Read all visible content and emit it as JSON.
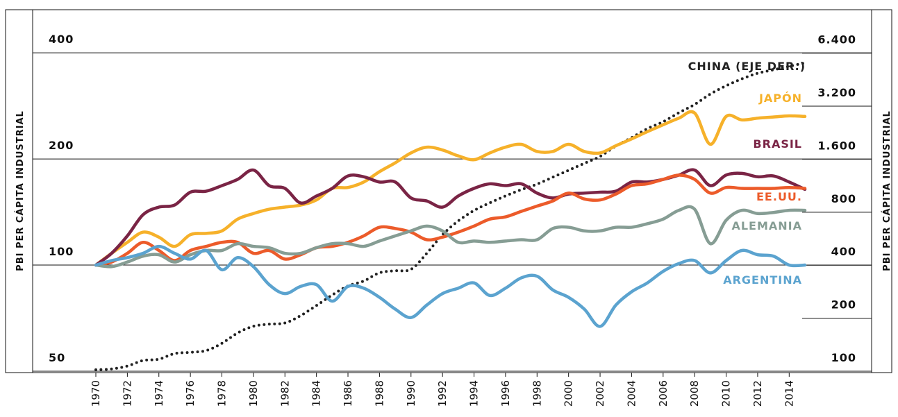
{
  "chart_data": {
    "type": "line",
    "y_label": "PBI PER CÁPITA INDUSTRIAL",
    "y2_label": "PBI PER CÁPITA INDUSTRIAL",
    "log_scale": true,
    "grid": true,
    "x": [
      1970,
      1971,
      1972,
      1973,
      1974,
      1975,
      1976,
      1977,
      1978,
      1979,
      1980,
      1981,
      1982,
      1983,
      1984,
      1985,
      1986,
      1987,
      1988,
      1989,
      1990,
      1991,
      1992,
      1993,
      1994,
      1995,
      1996,
      1997,
      1998,
      1999,
      2000,
      2001,
      2002,
      2003,
      2004,
      2005,
      2006,
      2007,
      2008,
      2009,
      2010,
      2011,
      2012,
      2013,
      2014,
      2015
    ],
    "xlim": [
      1970,
      2015
    ],
    "xticks": [
      1970,
      1972,
      1974,
      1976,
      1978,
      1980,
      1982,
      1984,
      1986,
      1988,
      1990,
      1992,
      1994,
      1996,
      1998,
      2000,
      2002,
      2004,
      2006,
      2008,
      2010,
      2012,
      2014
    ],
    "ylim": [
      50,
      530
    ],
    "yticks": [
      50,
      100,
      200,
      400
    ],
    "y2lim": [
      100,
      11300
    ],
    "y2ticks": [
      100,
      200,
      400,
      800,
      {
        "value": 1600,
        "label": "1.600"
      },
      {
        "value": 3200,
        "label": "3.200"
      },
      {
        "value": 6400,
        "label": "6.400"
      }
    ],
    "series": [
      {
        "name": "CHINA (EJE DER.)",
        "color": "#222222",
        "axis": "y2",
        "style": "dotted",
        "values": [
          102,
          103,
          107,
          115,
          117,
          126,
          128,
          131,
          144,
          165,
          180,
          185,
          188,
          207,
          236,
          271,
          305,
          325,
          362,
          372,
          379,
          467,
          596,
          714,
          818,
          904,
          990,
          1074,
          1155,
          1264,
          1384,
          1516,
          1659,
          1900,
          2119,
          2384,
          2610,
          2937,
          3274,
          3751,
          4182,
          4577,
          4921,
          5148,
          5389,
          5637
        ]
      },
      {
        "name": "JAPÓN",
        "color": "#f6b12a",
        "values": [
          100,
          108,
          116,
          124,
          120,
          113,
          122,
          123,
          125,
          135,
          140,
          144,
          146,
          148,
          153,
          165,
          166,
          172,
          184,
          195,
          208,
          216,
          212,
          204,
          199,
          208,
          216,
          220,
          210,
          210,
          220,
          210,
          208,
          218,
          228,
          239,
          250,
          261,
          270,
          220,
          264,
          258,
          261,
          263,
          265,
          264
        ]
      },
      {
        "name": "BRASIL",
        "color": "#7a2445",
        "values": [
          100,
          108,
          121,
          139,
          146,
          148,
          161,
          162,
          168,
          175,
          186,
          168,
          165,
          150,
          157,
          165,
          179,
          178,
          172,
          172,
          155,
          152,
          146,
          157,
          165,
          170,
          168,
          170,
          160,
          155,
          159,
          160,
          161,
          162,
          172,
          172,
          175,
          180,
          186,
          168,
          180,
          182,
          178,
          179,
          172,
          164
        ]
      },
      {
        "name": "EE.UU.",
        "color": "#ec5b2a",
        "values": [
          100,
          102,
          108,
          116,
          110,
          103,
          110,
          113,
          116,
          116,
          108,
          110,
          104,
          107,
          112,
          113,
          116,
          121,
          128,
          127,
          124,
          118,
          120,
          124,
          129,
          135,
          137,
          142,
          147,
          152,
          160,
          154,
          153,
          159,
          168,
          170,
          175,
          180,
          175,
          160,
          166,
          165,
          165,
          165,
          166,
          165
        ]
      },
      {
        "name": "ALEMANIA",
        "color": "#869d94",
        "values": [
          100,
          99,
          102,
          106,
          107,
          102,
          107,
          110,
          110,
          115,
          113,
          112,
          108,
          108,
          112,
          115,
          115,
          113,
          117,
          121,
          125,
          129,
          125,
          116,
          117,
          116,
          117,
          118,
          118,
          127,
          128,
          125,
          125,
          128,
          128,
          131,
          135,
          143,
          144,
          115,
          134,
          143,
          140,
          141,
          143,
          143
        ]
      },
      {
        "name": "ARGENTINA",
        "color": "#5ba3cf",
        "values": [
          100,
          103,
          105,
          108,
          113,
          108,
          104,
          110,
          97,
          105,
          99,
          88,
          83,
          87,
          88,
          79,
          87,
          86,
          81,
          75,
          71,
          77,
          83,
          86,
          89,
          82,
          86,
          92,
          93,
          85,
          81,
          75,
          67,
          77,
          84,
          89,
          96,
          101,
          103,
          95,
          103,
          110,
          107,
          106,
          100,
          100
        ]
      }
    ]
  }
}
